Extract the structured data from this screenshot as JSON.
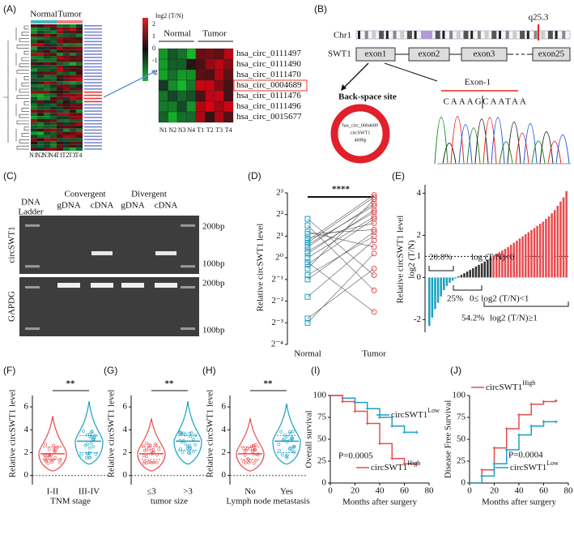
{
  "panel_a": {
    "label": "(A)",
    "groups": [
      "Normal",
      "Tumor"
    ],
    "legend_title": "log2  (T/N)",
    "legend_ticks": [
      2,
      1,
      0,
      -1,
      -2
    ],
    "samples": [
      "N1",
      "N2",
      "N3",
      "N4",
      "T1",
      "T2",
      "T3",
      "T4"
    ],
    "genes": [
      "hsa_circ_0111497",
      "hsa_circ_0111490",
      "hsa_circ_0111470",
      "hsa_circ_0004689",
      "hsa_circ_0111476",
      "hsa_circ_0111496",
      "hsa_circ_0015677"
    ]
  },
  "panel_b": {
    "label": "(B)",
    "chromosome": "Chr1",
    "band": "q25.3",
    "gene": "SWT1",
    "exons": [
      "exon1",
      "exon2",
      "exon3",
      "exon25"
    ],
    "site": "Back-space site",
    "circle": [
      "has_circ_0004689",
      "circSWT1",
      "469bp"
    ],
    "exon_label": "Exon-1",
    "sequence": [
      "CAAAG",
      "CAATAA"
    ]
  },
  "panel_c": {
    "label": "(C)",
    "ladder": [
      "DNA",
      "Ladder"
    ],
    "groups": [
      "Convergent",
      "Divergent"
    ],
    "lanes": [
      "gDNA",
      "cDNA",
      "gDNA",
      "cDNA"
    ],
    "rows": [
      "circSWT1",
      "GAPDG"
    ],
    "sizes": [
      "200bp",
      "100bp",
      "200bp",
      "100bp"
    ]
  },
  "panel_d": {
    "label": "(D)",
    "type": "paired",
    "ylabel": "Relative circSWT1 level",
    "categories": [
      "Normal",
      "Tumor"
    ],
    "significance": "****",
    "ylim": [
      -4,
      3
    ],
    "yticks": [
      {
        "value": 3,
        "label": "2³"
      },
      {
        "value": 2,
        "label": "2²"
      },
      {
        "value": 1,
        "label": "2¹"
      },
      {
        "value": 0,
        "label": "2⁰"
      },
      {
        "value": -1,
        "label": "2⁻¹"
      },
      {
        "value": -2,
        "label": "2⁻²"
      },
      {
        "value": -3,
        "label": "2⁻³"
      },
      {
        "value": -4,
        "label": "2⁻⁴"
      }
    ],
    "colors": [
      "#1ba1c2",
      "#e84c4f"
    ],
    "normal": [
      0.5,
      -0.3,
      1.2,
      0.8,
      -1,
      0.2,
      -2.8,
      0.9,
      -0.5,
      1.5,
      0,
      -1.8,
      0.6,
      -0.2,
      1.1,
      -3,
      0.3,
      0.7,
      -0.8,
      1.8
    ],
    "tumor": [
      2.5,
      1.8,
      0.5,
      2.9,
      1.2,
      2.2,
      -0.5,
      1.6,
      2.7,
      -1.5,
      1.9,
      0.8,
      2.4,
      -2.5,
      1.3,
      0.2,
      2.1,
      2.8,
      1.0,
      -0.8
    ]
  },
  "panel_e": {
    "label": "(E)",
    "type": "waterfall",
    "ylabel": [
      "Relative circSWT1 level",
      "log2 (T/N)"
    ],
    "ylim": [
      -2.6,
      4.4
    ],
    "yticks": [
      -2,
      0,
      2,
      4
    ],
    "threshold": 1,
    "threshold_label": "1",
    "colors": [
      "#1ba1c2",
      "#333333",
      "#e84c4f"
    ],
    "annotations": [
      [
        "20.8%",
        "log (T/N)<0"
      ],
      [
        "25%",
        "0≤ log2 (T/N)<1"
      ],
      [
        "54.2%",
        "log2 (T/N)≥1"
      ]
    ],
    "values": [
      -2.3,
      -1.9,
      -1.5,
      -1.2,
      -0.9,
      -0.6,
      -0.4,
      -0.25,
      -0.15,
      -0.05,
      0.05,
      0.12,
      0.2,
      0.28,
      0.36,
      0.44,
      0.52,
      0.6,
      0.68,
      0.76,
      0.85,
      0.95,
      1.05,
      1.12,
      1.2,
      1.28,
      1.36,
      1.45,
      1.55,
      1.65,
      1.75,
      1.85,
      1.95,
      2.05,
      2.15,
      2.25,
      2.35,
      2.45,
      2.55,
      2.65,
      2.78,
      2.9,
      3.05,
      3.2,
      3.4,
      3.6,
      3.8,
      4.1
    ]
  },
  "panel_f": {
    "label": "(F)",
    "type": "violin",
    "ylabel": "Relative circSWT1 level",
    "xlabel": "TNM stage",
    "categories": [
      "I-II",
      "III-IV"
    ],
    "significance": "**",
    "ylim": [
      -0.8,
      7
    ],
    "yticks": [
      0,
      2,
      4,
      6
    ],
    "colors": [
      "#e84c4f",
      "#1ba1c2"
    ],
    "min": [
      0.4,
      1.0
    ],
    "q1": [
      1.4,
      2.0
    ],
    "median": [
      1.9,
      3.0
    ],
    "q3": [
      2.5,
      3.5
    ],
    "max": [
      5.2,
      6.5
    ]
  },
  "panel_g": {
    "label": "(G)",
    "type": "violin",
    "ylabel": "Relative circSWT1 level",
    "xlabel": "tumor size",
    "categories": [
      "≤3",
      ">3"
    ],
    "significance": "**",
    "ylim": [
      -0.8,
      7
    ],
    "yticks": [
      0,
      2,
      4,
      6
    ],
    "colors": [
      "#e84c4f",
      "#1ba1c2"
    ],
    "min": [
      0.4,
      1.0
    ],
    "q1": [
      1.4,
      2.2
    ],
    "median": [
      1.9,
      3.0
    ],
    "q3": [
      2.5,
      3.5
    ],
    "max": [
      5.0,
      6.5
    ]
  },
  "panel_h": {
    "label": "(H)",
    "type": "violin",
    "ylabel": "Relative circSWT1 level",
    "xlabel": "Lymph node metastasis",
    "categories": [
      "No",
      "Yes"
    ],
    "significance": "**",
    "ylim": [
      -0.8,
      7
    ],
    "yticks": [
      0,
      2,
      4,
      6
    ],
    "colors": [
      "#e84c4f",
      "#1ba1c2"
    ],
    "min": [
      0.4,
      1.0
    ],
    "q1": [
      1.4,
      2.0
    ],
    "median": [
      1.9,
      3.0
    ],
    "q3": [
      2.5,
      3.5
    ],
    "max": [
      5.0,
      6.3
    ]
  },
  "panel_i": {
    "label": "(I)",
    "type": "survival",
    "ylabel": "Overall survival",
    "xlabel": "Months after surgery",
    "annotation": "P=0.0005",
    "xlim": [
      0,
      80
    ],
    "xticks": [
      0,
      20,
      40,
      60,
      80
    ],
    "ylim": [
      0,
      100
    ],
    "yticks": [
      0,
      25,
      50,
      75,
      100
    ],
    "series": [
      {
        "name": "circSWT1",
        "sup": "Low",
        "color": "#1ba1c2",
        "x": [
          0,
          10,
          20,
          30,
          40,
          50,
          60,
          70
        ],
        "y": [
          100,
          97,
          92,
          85,
          75,
          65,
          58,
          58
        ]
      },
      {
        "name": "circSWT1",
        "sup": "High",
        "color": "#e84c4f",
        "x": [
          0,
          10,
          20,
          30,
          40,
          50,
          60,
          70
        ],
        "y": [
          100,
          93,
          82,
          68,
          45,
          28,
          22,
          22
        ]
      }
    ]
  },
  "panel_j": {
    "label": "(J)",
    "type": "survival",
    "ylabel": "Disease Free Survival",
    "xlabel": "Months after surgery",
    "annotation": "P=0.0004",
    "xlim": [
      0,
      80
    ],
    "xticks": [
      0,
      20,
      40,
      60,
      80
    ],
    "ylim": [
      0,
      100
    ],
    "yticks": [
      0,
      25,
      50,
      75,
      100
    ],
    "series": [
      {
        "name": "circSWT1",
        "sup": "High",
        "color": "#e84c4f",
        "x": [
          0,
          10,
          20,
          30,
          40,
          50,
          60,
          70
        ],
        "y": [
          0,
          15,
          40,
          62,
          78,
          90,
          93,
          94
        ]
      },
      {
        "name": "circSWT1",
        "sup": "Low",
        "color": "#1ba1c2",
        "x": [
          0,
          10,
          20,
          30,
          40,
          50,
          60,
          70
        ],
        "y": [
          0,
          8,
          22,
          38,
          55,
          65,
          70,
          70
        ]
      }
    ]
  }
}
